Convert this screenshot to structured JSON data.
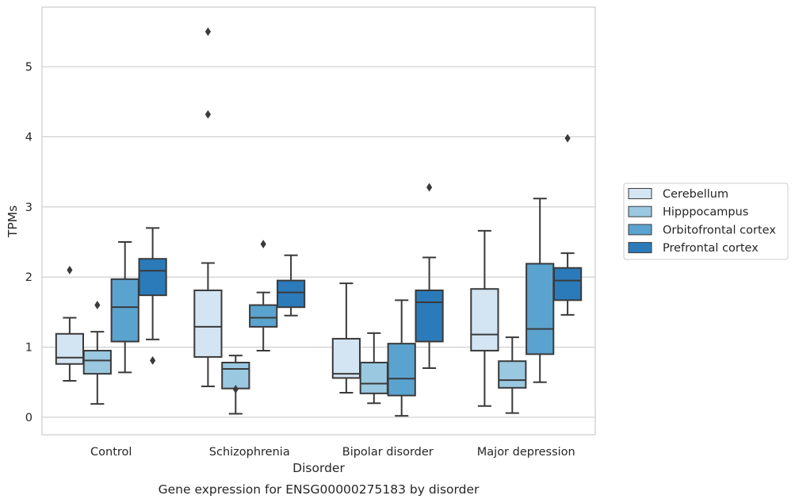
{
  "chart_data": {
    "type": "boxplot",
    "title": "",
    "caption": "Gene expression for ENSG00000275183 by disorder",
    "xlabel": "Disorder",
    "ylabel": "TPMs",
    "ylim": [
      -0.25,
      5.85
    ],
    "yticks": [
      0,
      1,
      2,
      3,
      4,
      5
    ],
    "grid": "horizontal",
    "legend_position": "right",
    "categories": [
      "Control",
      "Schizophrenia",
      "Bipolar disorder",
      "Major depression"
    ],
    "series": [
      {
        "name": "Cerebellum",
        "color": "#d3e4f3",
        "boxes": [
          {
            "whislo": 0.52,
            "q1": 0.76,
            "med": 0.85,
            "q3": 1.19,
            "whishi": 1.42,
            "fliers": [
              2.1
            ]
          },
          {
            "whislo": 0.44,
            "q1": 0.86,
            "med": 1.29,
            "q3": 1.81,
            "whishi": 2.2,
            "fliers": []
          },
          {
            "whislo": 0.35,
            "q1": 0.56,
            "med": 0.62,
            "q3": 1.12,
            "whishi": 1.91,
            "fliers": []
          },
          {
            "whislo": 0.16,
            "q1": 0.95,
            "med": 1.18,
            "q3": 1.83,
            "whishi": 2.66,
            "fliers": []
          }
        ]
      },
      {
        "name": "Hipppocampus",
        "color": "#9ac8e0",
        "boxes": [
          {
            "whislo": 0.19,
            "q1": 0.62,
            "med": 0.81,
            "q3": 0.95,
            "whishi": 1.22,
            "fliers": [
              1.6
            ]
          },
          {
            "whislo": 0.05,
            "q1": 0.41,
            "med": 0.69,
            "q3": 0.78,
            "whishi": 0.88,
            "fliers": [
              0.4
            ]
          },
          {
            "whislo": 0.2,
            "q1": 0.34,
            "med": 0.48,
            "q3": 0.78,
            "whishi": 1.2,
            "fliers": []
          },
          {
            "whislo": 0.06,
            "q1": 0.42,
            "med": 0.53,
            "q3": 0.8,
            "whishi": 1.14,
            "fliers": []
          }
        ]
      },
      {
        "name": "Orbitofrontal cortex",
        "color": "#5ba3cf",
        "boxes": [
          {
            "whislo": 0.64,
            "q1": 1.08,
            "med": 1.57,
            "q3": 1.97,
            "whishi": 2.5,
            "fliers": []
          },
          {
            "whislo": 0.95,
            "q1": 1.29,
            "med": 1.42,
            "q3": 1.6,
            "whishi": 1.78,
            "fliers": [
              2.47
            ]
          },
          {
            "whislo": 0.02,
            "q1": 0.31,
            "med": 0.55,
            "q3": 1.05,
            "whishi": 1.67,
            "fliers": []
          },
          {
            "whislo": 0.5,
            "q1": 0.9,
            "med": 1.26,
            "q3": 2.19,
            "whishi": 3.12,
            "fliers": []
          }
        ]
      },
      {
        "name": "Prefrontal cortex",
        "color": "#2b7bba",
        "boxes": [
          {
            "whislo": 1.11,
            "q1": 1.74,
            "med": 2.09,
            "q3": 2.26,
            "whishi": 2.7,
            "fliers": [
              0.81
            ]
          },
          {
            "whislo": 1.45,
            "q1": 1.57,
            "med": 1.78,
            "q3": 1.95,
            "whishi": 2.31,
            "fliers": []
          },
          {
            "whislo": 0.7,
            "q1": 1.08,
            "med": 1.64,
            "q3": 1.81,
            "whishi": 2.28,
            "fliers": [
              3.28
            ]
          },
          {
            "whislo": 1.46,
            "q1": 1.67,
            "med": 1.95,
            "q3": 2.13,
            "whishi": 2.34,
            "fliers": [
              3.98
            ]
          }
        ]
      }
    ],
    "extra_fliers": [
      {
        "category": 1,
        "series": 0,
        "values": [
          5.5,
          4.32
        ]
      }
    ]
  }
}
